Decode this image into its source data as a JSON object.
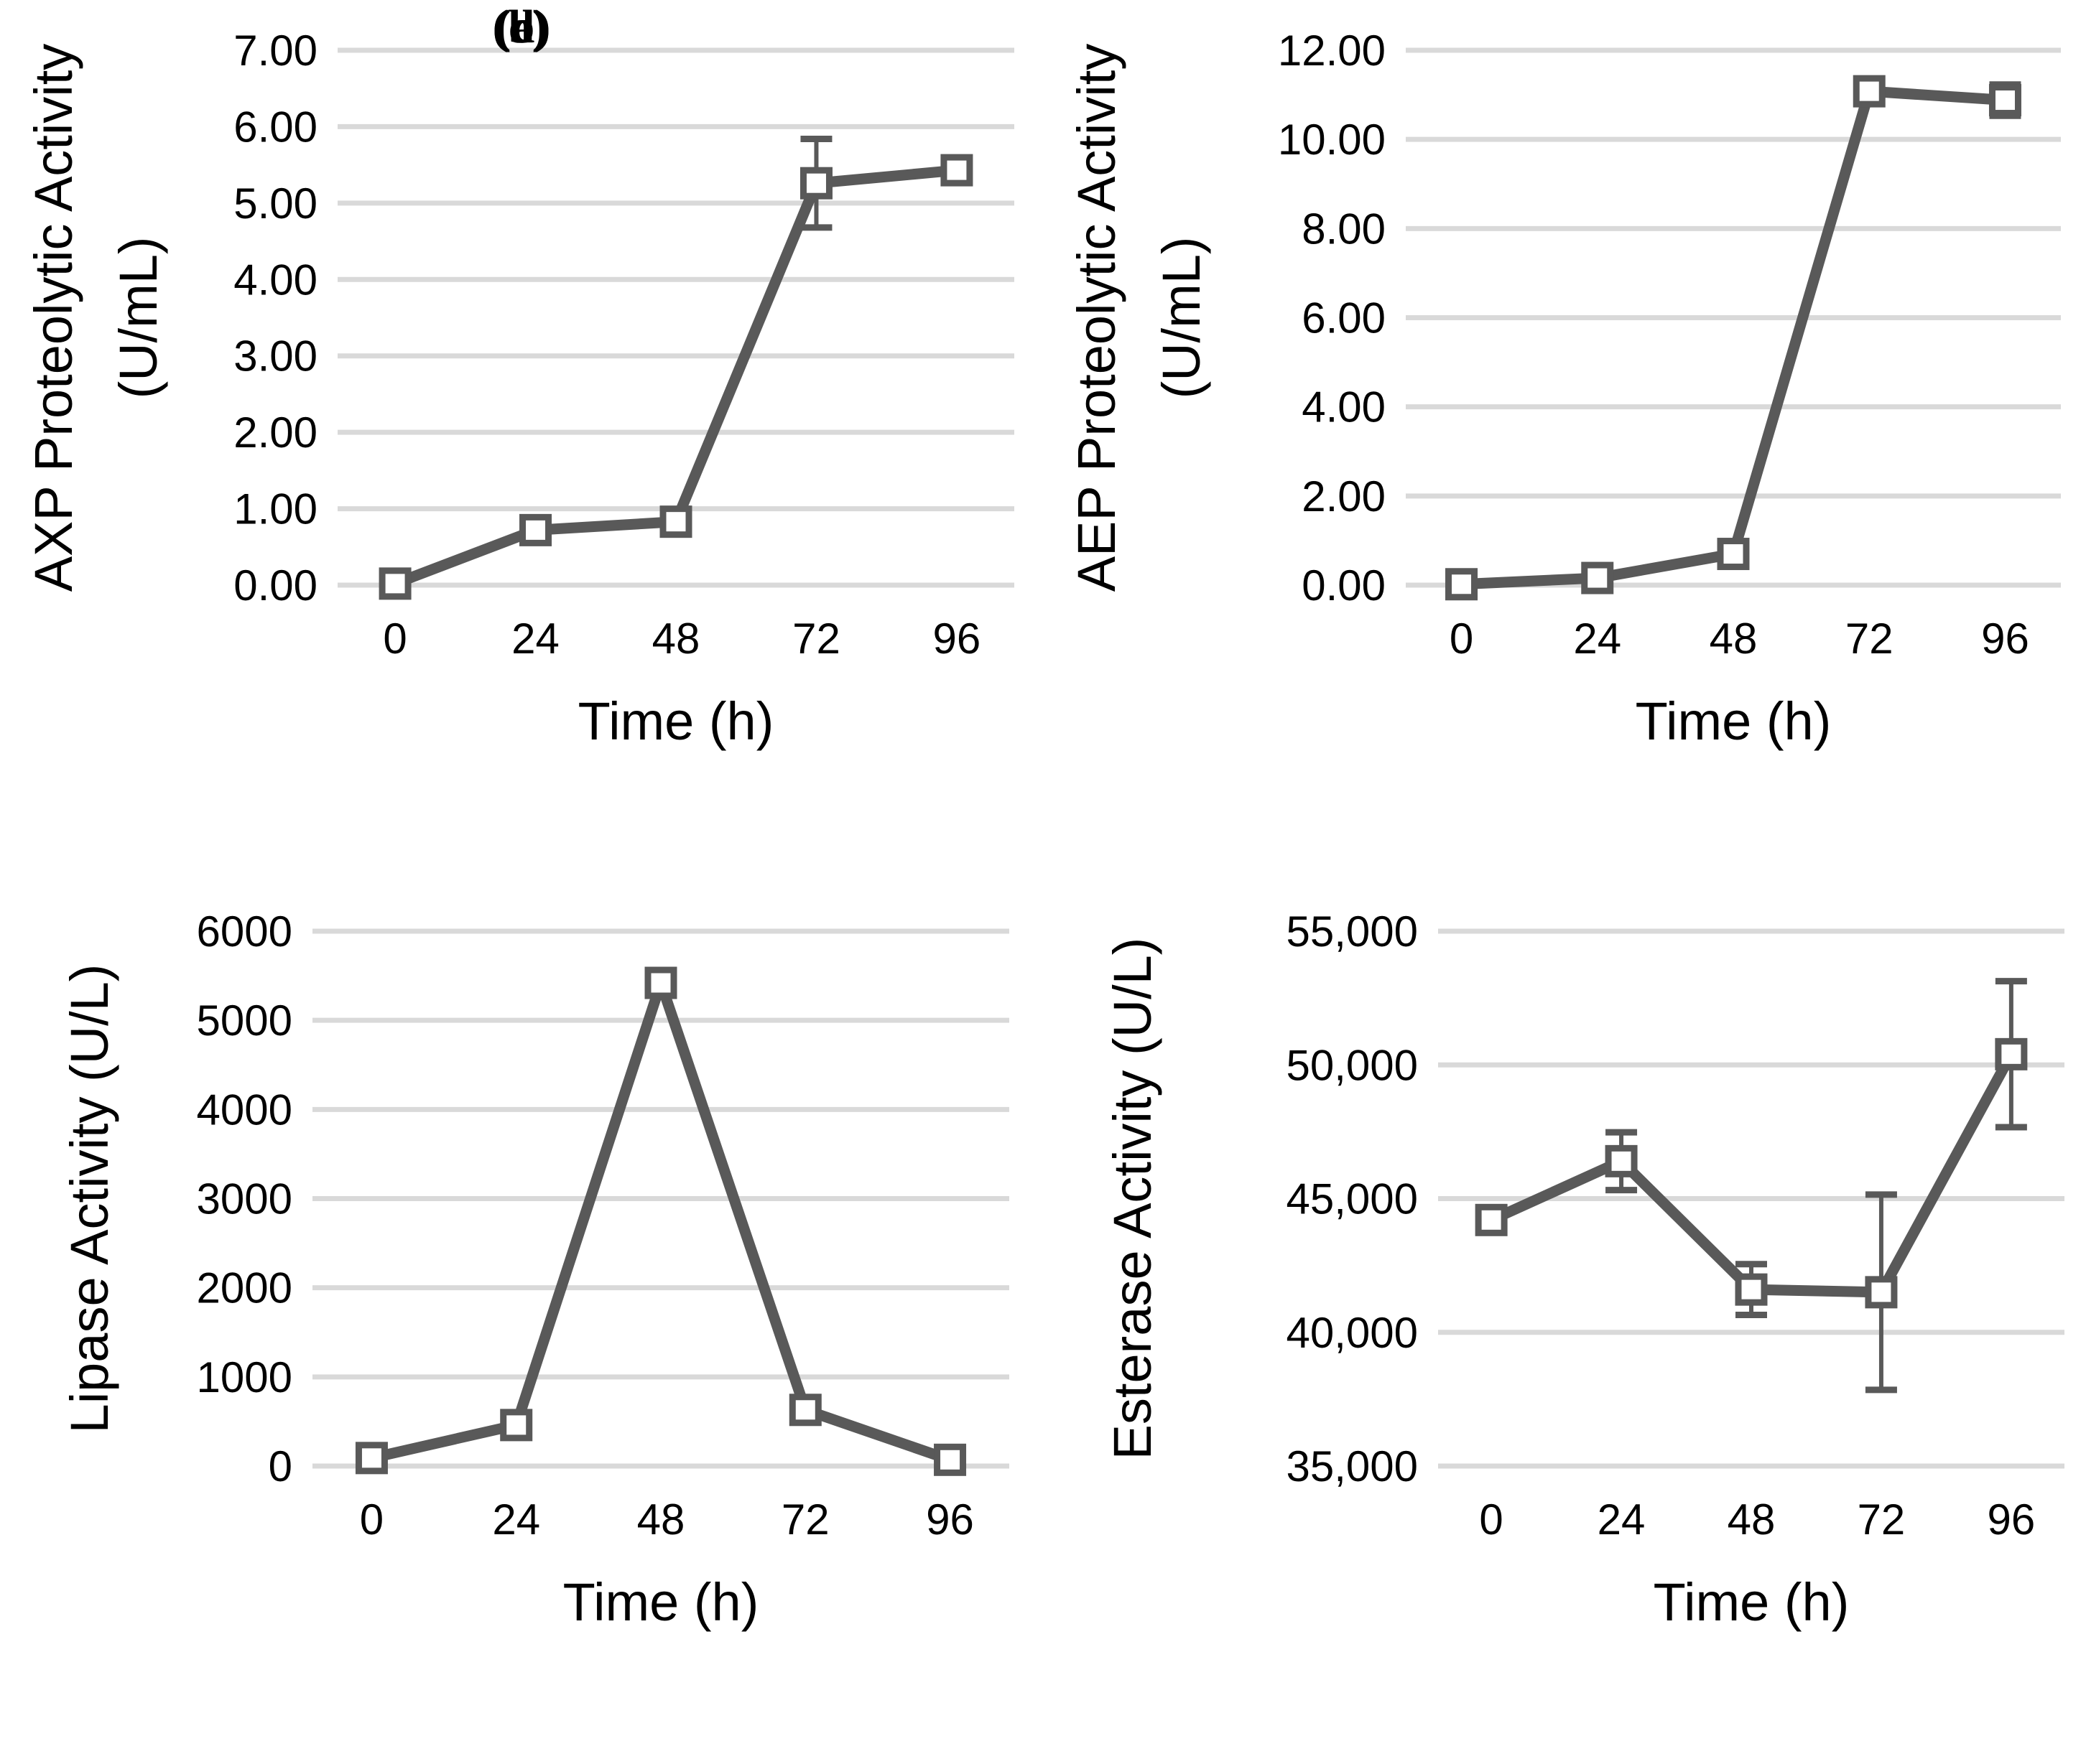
{
  "figure": {
    "background": "#ffffff",
    "colors": {
      "line": "#595959",
      "marker_fill": "#ffffff",
      "marker_stroke": "#595959",
      "error_bar": "#595959",
      "gridline": "#d9d9d9",
      "text": "#000000"
    }
  },
  "chart_data": [
    {
      "type": "line",
      "panel_label": "(a)",
      "ylabel_lines": [
        "AXP Proteolytic Activity",
        "(U/mL)"
      ],
      "xlabel": "Time (h)",
      "x": [
        0,
        24,
        48,
        72,
        96
      ],
      "x_tick_labels": [
        "0",
        "24",
        "48",
        "72",
        "96"
      ],
      "values": [
        0.02,
        0.72,
        0.83,
        5.26,
        5.43
      ],
      "errors": [
        0,
        0,
        0,
        0.58,
        0
      ],
      "ylim": [
        0,
        7
      ],
      "y_tick_values": [
        0,
        1,
        2,
        3,
        4,
        5,
        6,
        7
      ],
      "y_tick_labels": [
        "0.00",
        "1.00",
        "2.00",
        "3.00",
        "4.00",
        "5.00",
        "6.00",
        "7.00"
      ],
      "grid": "horizontal",
      "legend": "none",
      "marker": "open-square"
    },
    {
      "type": "line",
      "panel_label": "(b)",
      "ylabel_lines": [
        "AEP Proteolytic Activity",
        "(U/mL)"
      ],
      "xlabel": "Time (h)",
      "x": [
        0,
        24,
        48,
        72,
        96
      ],
      "x_tick_labels": [
        "0",
        "24",
        "48",
        "72",
        "96"
      ],
      "values": [
        0.02,
        0.16,
        0.7,
        11.08,
        10.88
      ],
      "errors": [
        0,
        0,
        0,
        0.12,
        0.35
      ],
      "ylim": [
        0,
        12
      ],
      "y_tick_values": [
        0,
        2,
        4,
        6,
        8,
        10,
        12
      ],
      "y_tick_labels": [
        "0.00",
        "2.00",
        "4.00",
        "6.00",
        "8.00",
        "10.00",
        "12.00"
      ],
      "grid": "horizontal",
      "legend": "none",
      "marker": "open-square"
    },
    {
      "type": "line",
      "panel_label": "(c)",
      "ylabel_lines": [
        "Lipase Activity (U/L)"
      ],
      "xlabel": "Time (h)",
      "x": [
        0,
        24,
        48,
        72,
        96
      ],
      "x_tick_labels": [
        "0",
        "24",
        "48",
        "72",
        "96"
      ],
      "values": [
        90,
        460,
        5420,
        630,
        70
      ],
      "errors": [
        0,
        0,
        130,
        0,
        0
      ],
      "ylim": [
        0,
        6000
      ],
      "y_tick_values": [
        0,
        1000,
        2000,
        3000,
        4000,
        5000,
        6000
      ],
      "y_tick_labels": [
        "0",
        "1000",
        "2000",
        "3000",
        "4000",
        "5000",
        "6000"
      ],
      "grid": "horizontal",
      "legend": "none",
      "marker": "open-square"
    },
    {
      "type": "line",
      "panel_label": "(d)",
      "ylabel_lines": [
        "Esterase Activity (U/L)"
      ],
      "xlabel": "Time (h)",
      "x": [
        0,
        24,
        48,
        72,
        96
      ],
      "x_tick_labels": [
        "0",
        "24",
        "48",
        "72",
        "96"
      ],
      "values": [
        44200,
        46400,
        41600,
        41500,
        50400
      ],
      "errors": [
        0,
        1080,
        950,
        3650,
        2730
      ],
      "ylim": [
        35000,
        55000
      ],
      "y_tick_values": [
        35000,
        40000,
        45000,
        50000,
        55000
      ],
      "y_tick_labels": [
        "35,000",
        "40,000",
        "45,000",
        "50,000",
        "55,000"
      ],
      "grid": "horizontal",
      "legend": "none",
      "marker": "open-square"
    }
  ]
}
